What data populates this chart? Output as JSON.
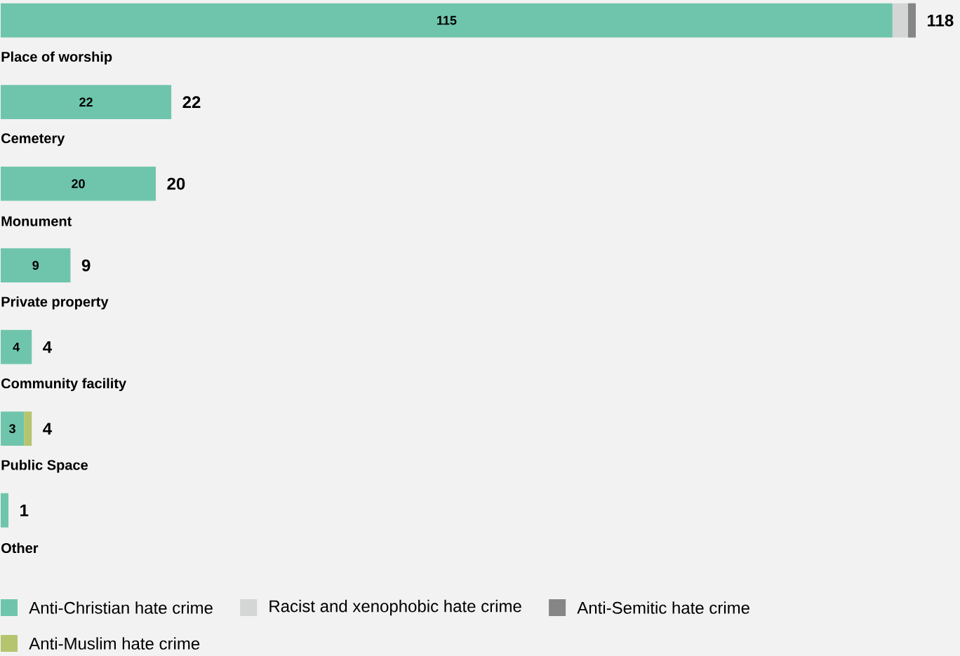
{
  "chart_data": {
    "type": "bar",
    "orientation": "horizontal",
    "stacked": true,
    "legend": "bottom",
    "categories": [
      "Place of worship",
      "Cemetery",
      "Monument",
      "Private property",
      "Community facility",
      "Public Space",
      "Other"
    ],
    "series": [
      {
        "name": "Anti-Christian hate crime",
        "color": "#6fc5ab",
        "values": [
          115,
          22,
          20,
          9,
          4,
          3,
          1
        ],
        "value_labels": [
          "115",
          "22",
          "20",
          "9",
          "4",
          "3",
          null
        ]
      },
      {
        "name": "Racist and xenophobic hate crime",
        "color": "#d3d6d5",
        "values": [
          2,
          null,
          null,
          null,
          null,
          null,
          null
        ]
      },
      {
        "name": "Anti-Semitic hate crime",
        "color": "#868686",
        "values": [
          1,
          null,
          null,
          null,
          null,
          null,
          null
        ]
      },
      {
        "name": "Anti-Muslim hate crime",
        "color": "#b5c56f",
        "values": [
          null,
          null,
          null,
          null,
          null,
          1,
          null
        ]
      }
    ],
    "totals": [
      "118",
      "22",
      "20",
      "9",
      "4",
      "4",
      "1"
    ]
  }
}
